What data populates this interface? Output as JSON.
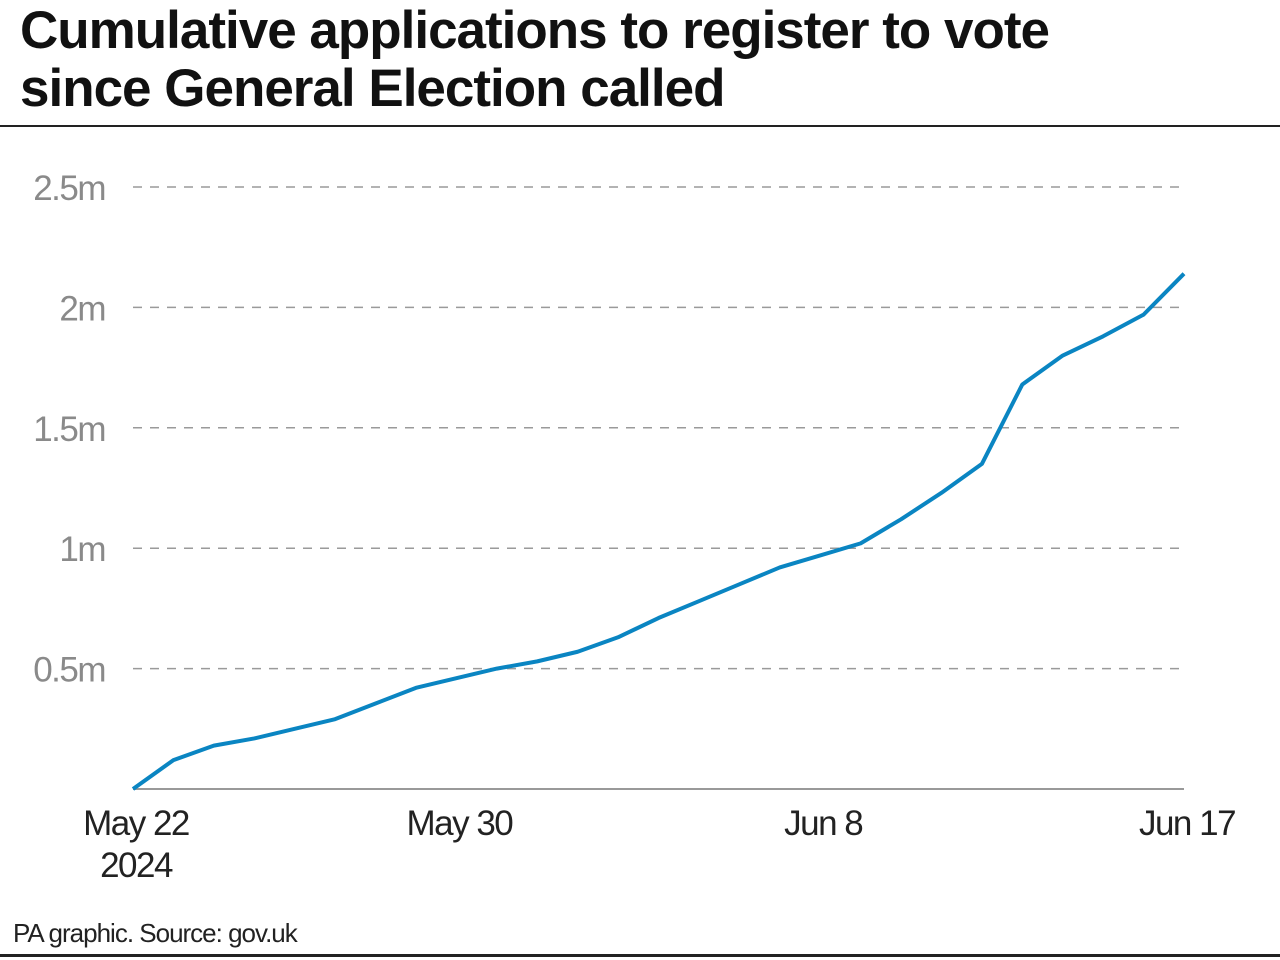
{
  "title_line1": "Cumulative applications to register to vote",
  "title_line2": "since General Election called",
  "source": "PA graphic. Source: gov.uk",
  "chart_data": {
    "type": "line",
    "title": "Cumulative applications to register to vote since General Election called",
    "xlabel": "",
    "ylabel": "",
    "x_start": "2024-05-22",
    "x_end": "2024-06-17",
    "x_ticks": [
      {
        "day": 0,
        "label": "May 22",
        "sublabel": "2024"
      },
      {
        "day": 8,
        "label": "May 30",
        "sublabel": ""
      },
      {
        "day": 17,
        "label": "Jun 8",
        "sublabel": ""
      },
      {
        "day": 26,
        "label": "Jun 17",
        "sublabel": ""
      }
    ],
    "y_ticks": [
      {
        "value": 0.5,
        "label": "0.5m"
      },
      {
        "value": 1,
        "label": "1m"
      },
      {
        "value": 1.5,
        "label": "1.5m"
      },
      {
        "value": 2,
        "label": "2m"
      },
      {
        "value": 2.5,
        "label": "2.5m"
      }
    ],
    "ylim": [
      0,
      2.5
    ],
    "y_unit": "millions",
    "grid": true,
    "color": "#0a85c2",
    "series": [
      {
        "dates": [
          "May 22",
          "May 23",
          "May 24",
          "May 25",
          "May 26",
          "May 27",
          "May 28",
          "May 29",
          "May 30",
          "May 31",
          "Jun 1",
          "Jun 2",
          "Jun 3",
          "Jun 4",
          "Jun 5",
          "Jun 6",
          "Jun 7",
          "Jun 8",
          "Jun 9",
          "Jun 10",
          "Jun 11",
          "Jun 12",
          "Jun 13",
          "Jun 14",
          "Jun 15",
          "Jun 16",
          "Jun 17"
        ],
        "values": [
          0,
          0.12,
          0.18,
          0.21,
          0.25,
          0.29,
          0.355,
          0.42,
          0.46,
          0.5,
          0.53,
          0.57,
          0.63,
          0.71,
          0.78,
          0.85,
          0.92,
          0.97,
          1.02,
          1.12,
          1.23,
          1.35,
          1.68,
          1.8,
          1.88,
          1.97,
          2.14
        ]
      }
    ]
  }
}
